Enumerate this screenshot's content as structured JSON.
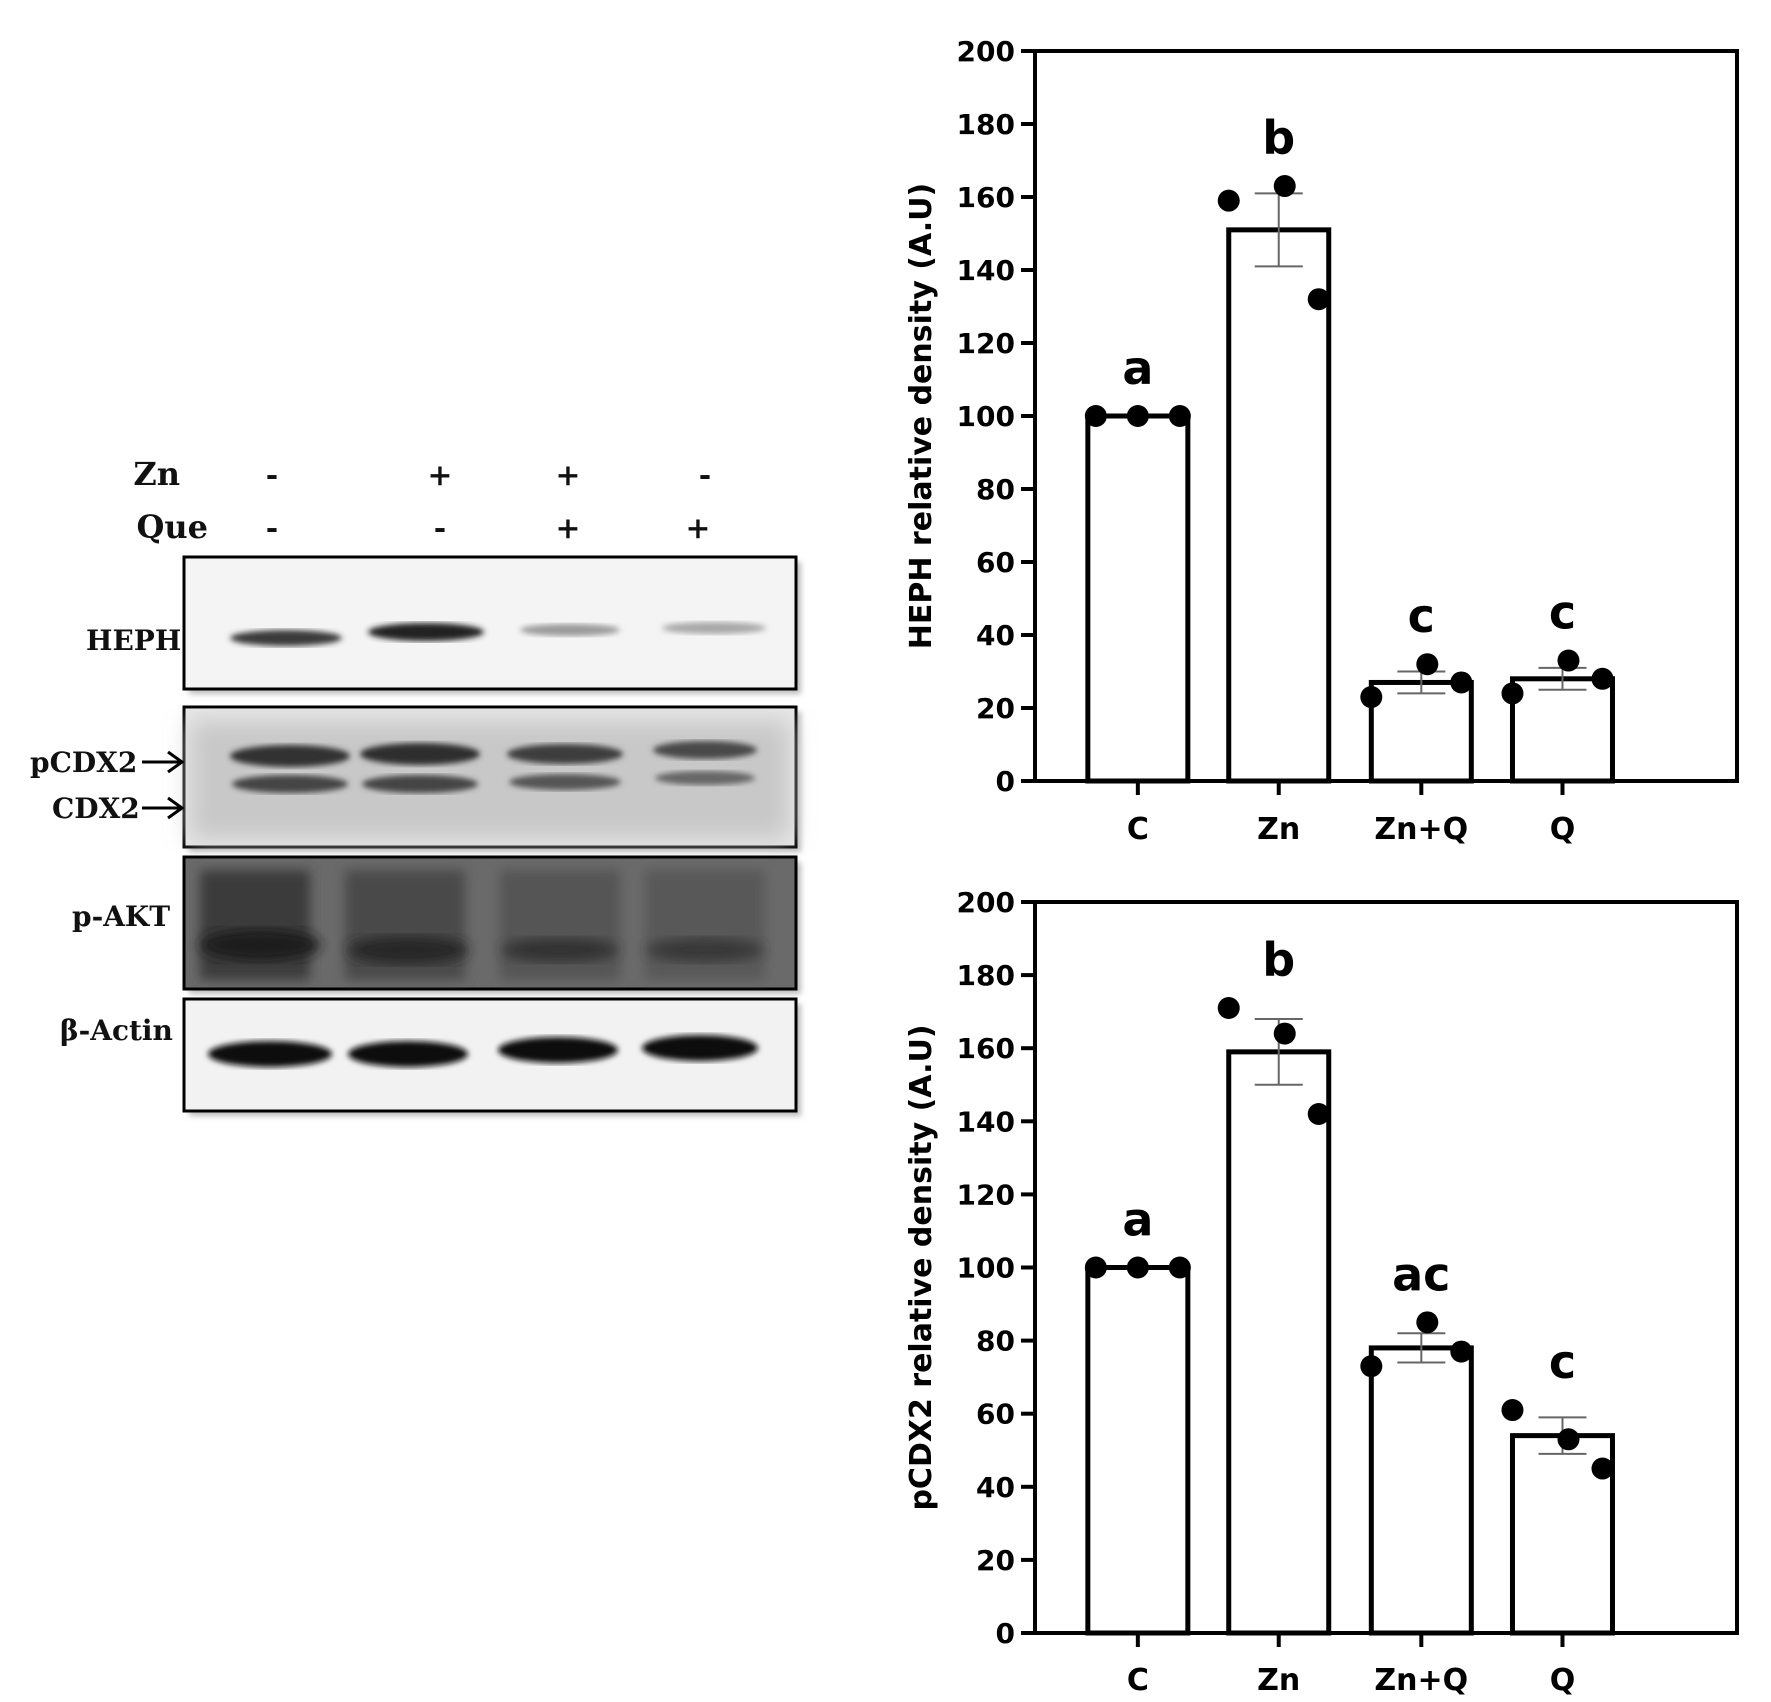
{
  "blot": {
    "treatments": [
      {
        "name": "Zn",
        "signs": [
          "-",
          "+",
          "+",
          "-"
        ]
      },
      {
        "name": "Que",
        "signs": [
          "-",
          "-",
          "+",
          "+"
        ]
      }
    ],
    "panels": [
      {
        "label": "HEPH"
      },
      {
        "label": "pCDX2",
        "label2": "CDX2"
      },
      {
        "label": "p-AKT"
      },
      {
        "label": "β-Actin"
      }
    ]
  },
  "chart_data": [
    {
      "type": "bar",
      "categories": [
        "C",
        "Zn",
        "Zn+Q",
        "Q"
      ],
      "values": [
        100,
        151,
        27,
        28
      ],
      "sem": [
        0,
        10,
        3,
        3
      ],
      "points": [
        [
          100,
          100,
          100
        ],
        [
          159,
          163,
          132
        ],
        [
          23,
          32,
          27
        ],
        [
          24,
          33,
          28
        ]
      ],
      "significance": [
        "a",
        "b",
        "c",
        "c"
      ],
      "ylabel": "HEPH relative density (A.U)",
      "ylim": [
        0,
        200
      ],
      "yticks": [
        0,
        20,
        40,
        60,
        80,
        100,
        120,
        140,
        160,
        180,
        200
      ],
      "grid": false
    },
    {
      "type": "bar",
      "categories": [
        "C",
        "Zn",
        "Zn+Q",
        "Q"
      ],
      "values": [
        100,
        159,
        78,
        54
      ],
      "sem": [
        0,
        9,
        4,
        5
      ],
      "points": [
        [
          100,
          100,
          100
        ],
        [
          171,
          164,
          142
        ],
        [
          73,
          85,
          77
        ],
        [
          61,
          53,
          45
        ]
      ],
      "significance": [
        "a",
        "b",
        "ac",
        "c"
      ],
      "ylabel": "pCDX2 relative density (A.U)",
      "ylim": [
        0,
        200
      ],
      "yticks": [
        0,
        20,
        40,
        60,
        80,
        100,
        120,
        140,
        160,
        180,
        200
      ],
      "grid": false
    }
  ]
}
